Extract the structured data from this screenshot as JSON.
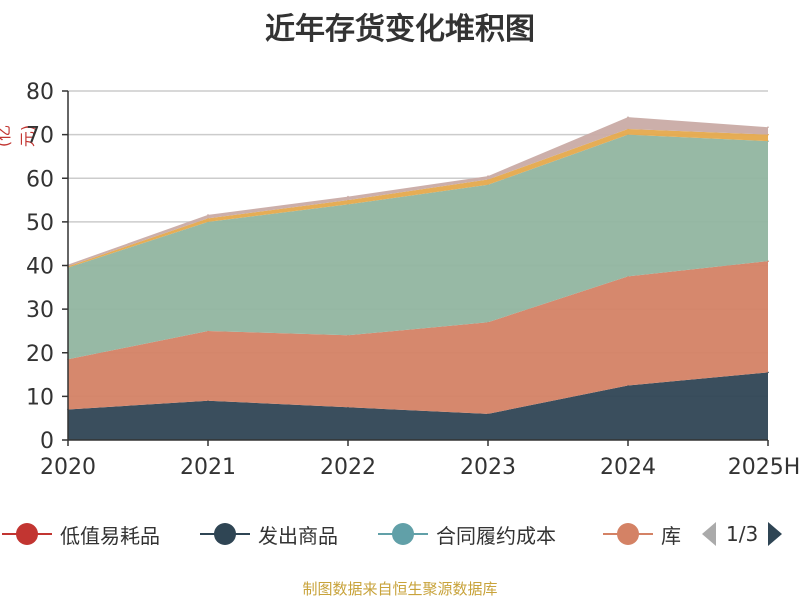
{
  "title": "近年存货变化堆积图",
  "unit_label": "(亿元)",
  "source": "制图数据来自恒生聚源数据库",
  "legend": {
    "items": [
      {
        "label": "低值易耗品",
        "color": "#c23531"
      },
      {
        "label": "发出商品",
        "color": "#2f4554"
      },
      {
        "label": "合同履约成本",
        "color": "#61a0a8"
      },
      {
        "label": "库",
        "color": "#d48265"
      }
    ],
    "page": "1/3",
    "prev_color": "#aaaaaa",
    "next_color": "#2f4554"
  },
  "chart_data": {
    "type": "area",
    "stacked": true,
    "categories": [
      "2020",
      "2021",
      "2022",
      "2023",
      "2024",
      "2025H"
    ],
    "ylim": [
      0,
      80
    ],
    "yticks": [
      0,
      10,
      20,
      30,
      40,
      50,
      60,
      70,
      80
    ],
    "grid": true,
    "series": [
      {
        "key": "s1",
        "color": "#2f4554",
        "values": [
          7,
          9,
          7.5,
          6,
          12.5,
          15.5
        ]
      },
      {
        "key": "s2",
        "color": "#d48265",
        "values": [
          11.5,
          16,
          16.5,
          21,
          25,
          25.5
        ]
      },
      {
        "key": "s3",
        "color": "#91b5a0",
        "values": [
          21,
          25,
          30,
          31.5,
          32.5,
          27.5
        ]
      },
      {
        "key": "s4",
        "color": "#e5a94c",
        "values": [
          0.3,
          0.8,
          1,
          1.2,
          1.3,
          1.5
        ]
      },
      {
        "key": "s5",
        "color": "#c9aba5",
        "values": [
          0.4,
          0.8,
          0.8,
          0.8,
          2.7,
          1.7
        ]
      }
    ]
  }
}
